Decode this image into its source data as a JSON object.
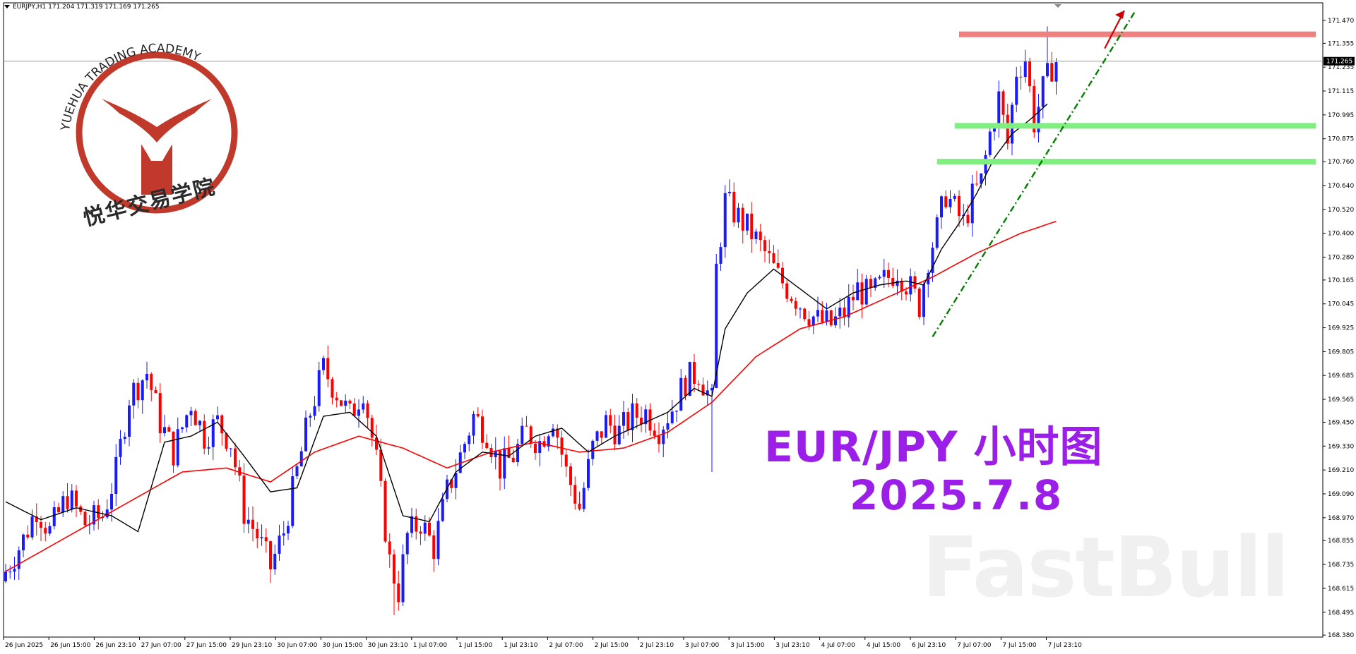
{
  "header": {
    "symbol_line": "EURJPY,H1  171.204 171.319 171.169 171.265"
  },
  "logo": {
    "arc_text": "YUEHUA TRADING ACADEMY",
    "cn_text": "悦华交易学院",
    "ring_color": "#c0392b"
  },
  "overlay": {
    "title": "EUR/JPY  小时图",
    "date": "2025.7.8",
    "color": "#9b1fe8"
  },
  "watermark": "FastBull",
  "chart_data": {
    "type": "candlestick",
    "symbol": "EURJPY",
    "timeframe": "H1",
    "ohlc_header": {
      "open": 171.204,
      "high": 171.319,
      "low": 171.169,
      "close": 171.265
    },
    "current_price": "171.265",
    "y_ticks": [
      "171.470",
      "171.355",
      "171.235",
      "171.115",
      "170.995",
      "170.875",
      "170.760",
      "170.640",
      "170.520",
      "170.400",
      "170.280",
      "170.165",
      "170.045",
      "169.925",
      "169.805",
      "169.685",
      "169.565",
      "169.450",
      "169.330",
      "169.210",
      "169.090",
      "168.970",
      "168.855",
      "168.735",
      "168.615",
      "168.495",
      "168.380"
    ],
    "ylim": [
      168.37,
      171.53
    ],
    "x_ticks": [
      "26 Jun 2025",
      "26 Jun 15:00",
      "26 Jun 23:10",
      "27 Jun 07:00",
      "27 Jun 15:00",
      "29 Jun 23:10",
      "30 Jun 07:00",
      "30 Jun 15:00",
      "30 Jun 23:10",
      "1 Jul 07:00",
      "1 Jul 15:00",
      "1 Jul 23:10",
      "2 Jul 07:00",
      "2 Jul 15:00",
      "2 Jul 23:10",
      "3 Jul 07:00",
      "3 Jul 15:00",
      "3 Jul 23:10",
      "4 Jul 07:00",
      "4 Jul 15:00",
      "6 Jul 23:10",
      "7 Jul 07:00",
      "7 Jul 15:00",
      "7 Jul 23:10"
    ],
    "bull_color": "#1a1aff",
    "bear_color": "#ff0000",
    "fast_ma_color": "#000000",
    "slow_ma_color": "#ff0000",
    "close_path": [
      [
        0,
        168.7
      ],
      [
        4,
        168.86
      ],
      [
        7,
        169.02
      ],
      [
        10,
        168.9
      ],
      [
        14,
        169.08
      ],
      [
        18,
        168.94
      ],
      [
        22,
        168.98
      ],
      [
        25,
        169.2
      ],
      [
        28,
        169.58
      ],
      [
        32,
        169.7
      ],
      [
        35,
        169.45
      ],
      [
        38,
        169.3
      ],
      [
        42,
        169.55
      ],
      [
        45,
        169.38
      ],
      [
        48,
        169.45
      ],
      [
        51,
        169.35
      ],
      [
        54,
        169.0
      ],
      [
        57,
        168.88
      ],
      [
        60,
        168.72
      ],
      [
        63,
        168.9
      ],
      [
        66,
        169.2
      ],
      [
        69,
        169.5
      ],
      [
        72,
        169.72
      ],
      [
        75,
        169.6
      ],
      [
        78,
        169.48
      ],
      [
        81,
        169.62
      ],
      [
        84,
        169.25
      ],
      [
        87,
        168.75
      ],
      [
        89,
        168.6
      ],
      [
        91,
        168.88
      ],
      [
        94,
        168.95
      ],
      [
        97,
        168.82
      ],
      [
        100,
        169.1
      ],
      [
        103,
        169.28
      ],
      [
        106,
        169.48
      ],
      [
        109,
        169.4
      ],
      [
        112,
        169.22
      ],
      [
        115,
        169.28
      ],
      [
        118,
        169.4
      ],
      [
        121,
        169.35
      ],
      [
        124,
        169.48
      ],
      [
        127,
        169.2
      ],
      [
        130,
        169.02
      ],
      [
        133,
        169.32
      ],
      [
        136,
        169.45
      ],
      [
        139,
        169.4
      ],
      [
        142,
        169.48
      ],
      [
        145,
        169.5
      ],
      [
        148,
        169.42
      ],
      [
        151,
        169.52
      ],
      [
        154,
        169.66
      ],
      [
        157,
        169.7
      ],
      [
        160,
        169.55
      ],
      [
        161,
        170.22
      ],
      [
        163,
        170.56
      ],
      [
        166,
        170.48
      ],
      [
        169,
        170.4
      ],
      [
        172,
        170.3
      ],
      [
        175,
        170.18
      ],
      [
        178,
        170.1
      ],
      [
        181,
        170.02
      ],
      [
        184,
        169.96
      ],
      [
        187,
        169.94
      ],
      [
        190,
        170.0
      ],
      [
        193,
        170.12
      ],
      [
        196,
        170.08
      ],
      [
        199,
        170.16
      ],
      [
        202,
        170.22
      ],
      [
        205,
        170.12
      ],
      [
        207,
        170.04
      ],
      [
        209,
        170.28
      ],
      [
        211,
        170.42
      ],
      [
        213,
        170.6
      ],
      [
        215,
        170.52
      ],
      [
        217,
        170.45
      ],
      [
        219,
        170.58
      ],
      [
        221,
        170.66
      ],
      [
        223,
        170.9
      ],
      [
        225,
        171.08
      ],
      [
        227,
        170.85
      ],
      [
        229,
        171.22
      ],
      [
        231,
        171.28
      ],
      [
        233,
        170.96
      ],
      [
        235,
        171.12
      ],
      [
        237,
        171.24
      ],
      [
        238,
        171.265
      ]
    ],
    "bars": 239,
    "fast_ma_path": [
      [
        0,
        169.05
      ],
      [
        8,
        168.96
      ],
      [
        16,
        169.02
      ],
      [
        24,
        168.98
      ],
      [
        30,
        168.9
      ],
      [
        36,
        169.35
      ],
      [
        42,
        169.38
      ],
      [
        48,
        169.45
      ],
      [
        54,
        169.28
      ],
      [
        60,
        169.1
      ],
      [
        66,
        169.12
      ],
      [
        72,
        169.48
      ],
      [
        78,
        169.5
      ],
      [
        84,
        169.38
      ],
      [
        90,
        168.98
      ],
      [
        96,
        168.95
      ],
      [
        102,
        169.2
      ],
      [
        108,
        169.3
      ],
      [
        114,
        169.28
      ],
      [
        120,
        169.38
      ],
      [
        126,
        169.42
      ],
      [
        132,
        169.3
      ],
      [
        138,
        169.38
      ],
      [
        144,
        169.44
      ],
      [
        150,
        169.5
      ],
      [
        156,
        169.62
      ],
      [
        160,
        169.58
      ],
      [
        163,
        169.92
      ],
      [
        168,
        170.1
      ],
      [
        174,
        170.22
      ],
      [
        180,
        170.12
      ],
      [
        186,
        170.02
      ],
      [
        192,
        170.1
      ],
      [
        198,
        170.14
      ],
      [
        204,
        170.16
      ],
      [
        208,
        170.14
      ],
      [
        212,
        170.32
      ],
      [
        216,
        170.45
      ],
      [
        220,
        170.6
      ],
      [
        224,
        170.78
      ],
      [
        228,
        170.9
      ],
      [
        232,
        170.97
      ],
      [
        236,
        171.05
      ]
    ],
    "slow_ma_path": [
      [
        0,
        168.7
      ],
      [
        20,
        168.95
      ],
      [
        40,
        169.2
      ],
      [
        50,
        169.22
      ],
      [
        60,
        169.15
      ],
      [
        70,
        169.3
      ],
      [
        80,
        169.38
      ],
      [
        90,
        169.32
      ],
      [
        100,
        169.22
      ],
      [
        110,
        169.3
      ],
      [
        120,
        169.35
      ],
      [
        130,
        169.3
      ],
      [
        140,
        169.32
      ],
      [
        150,
        169.4
      ],
      [
        160,
        169.55
      ],
      [
        170,
        169.78
      ],
      [
        180,
        169.92
      ],
      [
        190,
        169.98
      ],
      [
        200,
        170.08
      ],
      [
        210,
        170.18
      ],
      [
        220,
        170.3
      ],
      [
        230,
        170.4
      ],
      [
        238,
        170.46
      ]
    ],
    "h_lines": [
      {
        "label": "resistance",
        "price": 171.4,
        "color": "#f08080"
      },
      {
        "label": "support-1",
        "price": 170.94,
        "color": "#80ee80"
      },
      {
        "label": "support-2",
        "price": 170.76,
        "color": "#80ee80"
      }
    ],
    "trend_line": {
      "from": [
        210,
        169.88
      ],
      "to": [
        256,
        171.52
      ],
      "color": "#008000"
    },
    "arrow": {
      "from": [
        249,
        171.4
      ],
      "to": [
        256,
        171.52
      ],
      "color": "#d00000"
    }
  }
}
